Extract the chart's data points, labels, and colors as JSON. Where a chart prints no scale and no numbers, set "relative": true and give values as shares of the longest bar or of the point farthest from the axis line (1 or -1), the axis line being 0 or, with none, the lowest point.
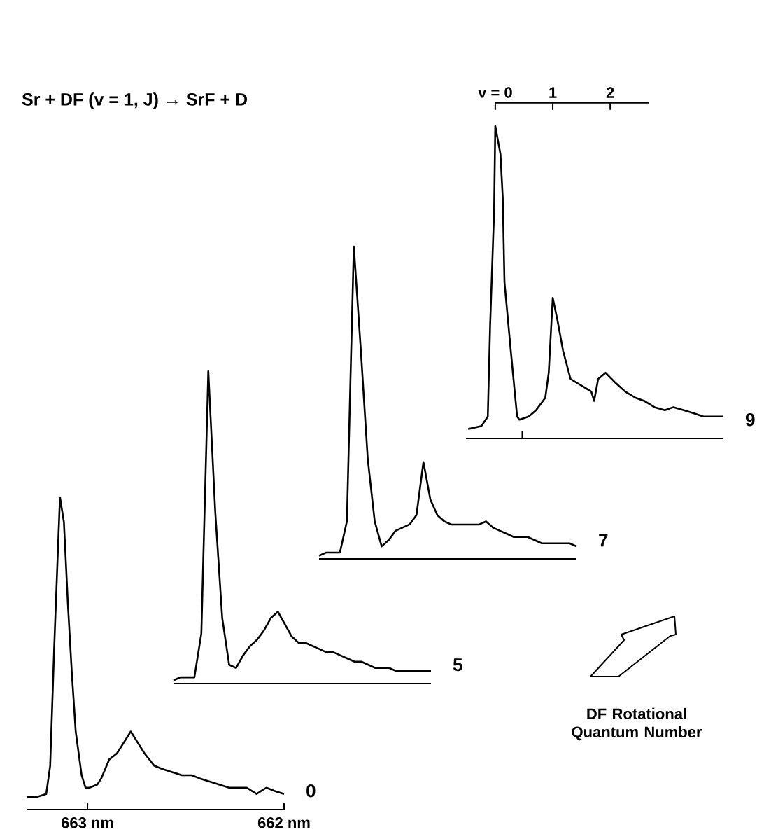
{
  "chart_data": [
    {
      "type": "other",
      "title": "Sr + DF (v = 1, J) → SrF + D",
      "annotations": [
        "DF Rotational Quantum Number"
      ]
    },
    {
      "type": "line",
      "relative": true,
      "xlim": [
        663.31,
        662
      ],
      "xticks": [
        {
          "value": 663,
          "label": "663 nm"
        },
        {
          "value": 662,
          "label": "662 nm"
        }
      ],
      "annotations": [
        "0"
      ],
      "x": [
        663.31,
        663.26,
        663.21,
        663.19,
        663.17,
        663.15,
        663.14,
        663.12,
        663.1,
        663.08,
        663.06,
        663.03,
        663.01,
        662.99,
        662.95,
        662.93,
        662.89,
        662.85,
        662.82,
        662.78,
        662.75,
        662.71,
        662.66,
        662.62,
        662.57,
        662.52,
        662.47,
        662.43,
        662.38,
        662.33,
        662.28,
        662.24,
        662.19,
        662.14,
        662.09,
        662.05,
        662.0
      ],
      "series": [
        {
          "color": "#000000",
          "values": [
            0.04,
            0.04,
            0.05,
            0.14,
            0.51,
            0.84,
            1.0,
            0.92,
            0.66,
            0.44,
            0.25,
            0.11,
            0.07,
            0.07,
            0.08,
            0.1,
            0.16,
            0.18,
            0.21,
            0.25,
            0.22,
            0.18,
            0.14,
            0.13,
            0.12,
            0.11,
            0.11,
            0.1,
            0.09,
            0.08,
            0.07,
            0.07,
            0.07,
            0.05,
            0.07,
            0.06,
            0.05
          ]
        }
      ]
    },
    {
      "type": "line",
      "relative": true,
      "annotations": [
        "5"
      ],
      "categories": [
        null,
        null,
        null,
        null,
        null,
        null,
        null,
        null,
        null,
        null,
        null,
        null,
        null,
        null,
        null,
        null,
        null,
        null,
        null,
        null,
        null,
        null,
        null,
        null,
        null,
        null,
        null,
        null,
        null,
        null,
        null,
        null,
        null,
        null,
        null,
        null,
        null,
        null
      ],
      "series": [
        {
          "color": "#000000",
          "values": [
            0.01,
            0.02,
            0.02,
            0.02,
            0.16,
            1.0,
            0.55,
            0.21,
            0.06,
            0.05,
            0.09,
            0.12,
            0.14,
            0.17,
            0.21,
            0.23,
            0.19,
            0.15,
            0.13,
            0.13,
            0.12,
            0.11,
            0.1,
            0.1,
            0.09,
            0.08,
            0.07,
            0.07,
            0.06,
            0.05,
            0.05,
            0.05,
            0.04,
            0.04,
            0.04,
            0.04,
            0.04,
            0.04
          ]
        }
      ]
    },
    {
      "type": "line",
      "relative": true,
      "annotations": [
        "7"
      ],
      "categories": [
        null,
        null,
        null,
        null,
        null,
        null,
        null,
        null,
        null,
        null,
        null,
        null,
        null,
        null,
        null,
        null,
        null,
        null,
        null,
        null,
        null,
        null,
        null,
        null,
        null,
        null,
        null,
        null,
        null,
        null,
        null,
        null,
        null,
        null,
        null,
        null,
        null,
        null
      ],
      "series": [
        {
          "color": "#000000",
          "values": [
            0.01,
            0.02,
            0.02,
            0.02,
            0.12,
            1.0,
            0.67,
            0.32,
            0.12,
            0.04,
            0.06,
            0.09,
            0.1,
            0.11,
            0.14,
            0.31,
            0.19,
            0.14,
            0.12,
            0.11,
            0.11,
            0.11,
            0.11,
            0.11,
            0.12,
            0.1,
            0.09,
            0.08,
            0.07,
            0.07,
            0.07,
            0.06,
            0.05,
            0.05,
            0.05,
            0.05,
            0.05,
            0.04
          ]
        }
      ]
    },
    {
      "type": "line",
      "relative": true,
      "xlim": [
        -0.51,
        3.97
      ],
      "xticks": [
        {
          "value": 0,
          "label": "v = 0"
        },
        {
          "value": 1,
          "label": "1"
        },
        {
          "value": 2,
          "label": "2"
        },
        {
          "value": 0.47,
          "label": null
        }
      ],
      "annotations": [
        "9"
      ],
      "x": [
        -0.47,
        -0.24,
        -0.13,
        -0.09,
        -0.02,
        0,
        0.09,
        0.13,
        0.16,
        0.27,
        0.38,
        0.42,
        0.58,
        0.71,
        0.87,
        0.93,
        1.0,
        1.08,
        1.18,
        1.31,
        1.49,
        1.67,
        1.72,
        1.79,
        1.92,
        2.08,
        2.26,
        2.44,
        2.59,
        2.77,
        2.95,
        3.1,
        3.28,
        3.46,
        3.62,
        3.87,
        3.97
      ],
      "series": [
        {
          "color": "#000000",
          "values": [
            0.03,
            0.04,
            0.07,
            0.36,
            0.73,
            1.0,
            0.91,
            0.77,
            0.5,
            0.28,
            0.07,
            0.06,
            0.07,
            0.09,
            0.13,
            0.21,
            0.45,
            0.38,
            0.28,
            0.19,
            0.17,
            0.15,
            0.12,
            0.19,
            0.21,
            0.18,
            0.15,
            0.13,
            0.12,
            0.1,
            0.09,
            0.1,
            0.09,
            0.08,
            0.07,
            0.07,
            0.07
          ]
        }
      ]
    }
  ]
}
